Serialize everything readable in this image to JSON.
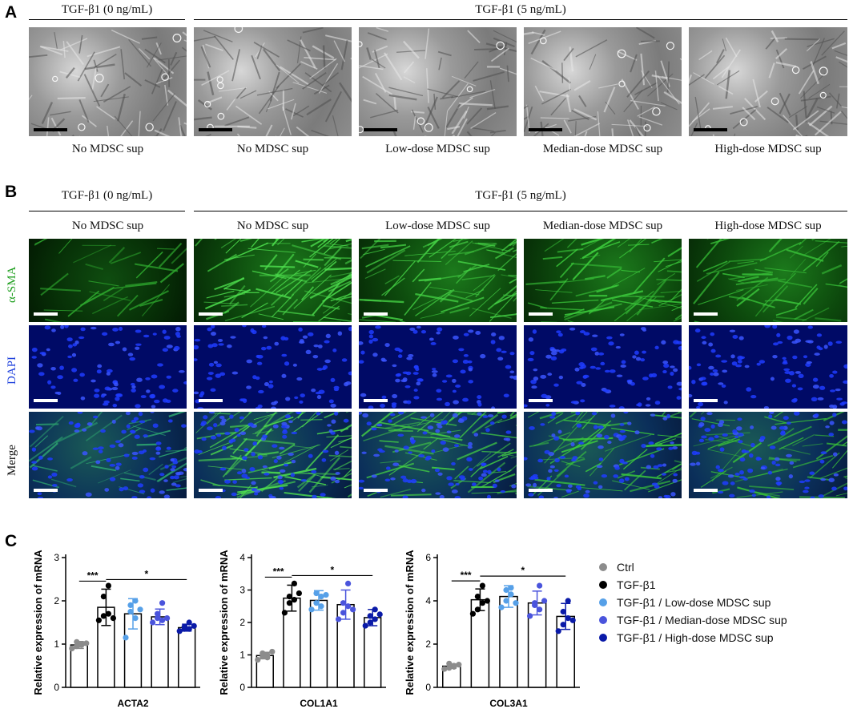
{
  "panels": {
    "A": "A",
    "B": "B",
    "C": "C"
  },
  "headers": {
    "tgf0": "TGF-β1 (0 ng/mL)",
    "tgf5": "TGF-β1 (5 ng/mL)"
  },
  "groups": [
    "No MDSC sup",
    "No MDSC sup",
    "Low-dose MDSC sup",
    "Median-dose MDSC sup",
    "High-dose MDSC sup"
  ],
  "row_labels": {
    "sma": "α-SMA",
    "dapi": "DAPI",
    "merge": "Merge"
  },
  "colors": {
    "ctrl": "#8c8c8c",
    "tgf": "#000000",
    "low": "#56a0e8",
    "median": "#4a54dc",
    "high": "#0a1aa8",
    "sma_text": "#21a021",
    "dapi_text": "#2244dd"
  },
  "legend": [
    "Ctrl",
    "TGF-β1",
    "TGF-β1 / Low-dose MDSC sup",
    "TGF-β1 / Median-dose MDSC sup",
    "TGF-β1 / High-dose MDSC sup"
  ],
  "chart_data": [
    {
      "type": "bar",
      "xlabel": "ACTA2",
      "ylabel": "Relative expression of mRNA",
      "ylim": [
        0,
        3
      ],
      "yticks": [
        0,
        1,
        2,
        3
      ],
      "categories": [
        "Ctrl",
        "TGF-β1",
        "TGF-β1 / Low-dose MDSC sup",
        "TGF-β1 / Median-dose MDSC sup",
        "TGF-β1 / High-dose MDSC sup"
      ],
      "values": [
        0.98,
        1.85,
        1.7,
        1.63,
        1.38
      ],
      "errors": [
        0.08,
        0.42,
        0.35,
        0.18,
        0.08
      ],
      "points": [
        [
          0.9,
          0.95,
          1.0,
          1.05,
          0.98,
          1.02
        ],
        [
          1.55,
          1.65,
          2.35,
          2.1,
          1.7,
          1.6
        ],
        [
          1.15,
          1.9,
          2.0,
          1.75,
          1.6,
          1.8
        ],
        [
          1.5,
          1.6,
          1.95,
          1.7,
          1.55,
          1.6
        ],
        [
          1.3,
          1.35,
          1.5,
          1.4,
          1.35,
          1.42
        ]
      ],
      "significance": [
        {
          "label": "***",
          "from": 0,
          "to": 1
        },
        {
          "label": "*",
          "from": 1,
          "to": 4
        }
      ]
    },
    {
      "type": "bar",
      "xlabel": "COL1A1",
      "ylabel": "Relative expression of mRNA",
      "ylim": [
        0,
        4
      ],
      "yticks": [
        0,
        1,
        2,
        3,
        4
      ],
      "categories": [
        "Ctrl",
        "TGF-β1",
        "TGF-β1 / Low-dose MDSC sup",
        "TGF-β1 / Median-dose MDSC sup",
        "TGF-β1 / High-dose MDSC sup"
      ],
      "values": [
        0.98,
        2.75,
        2.68,
        2.55,
        2.15
      ],
      "errors": [
        0.1,
        0.4,
        0.3,
        0.45,
        0.25
      ],
      "points": [
        [
          0.85,
          0.95,
          1.0,
          1.05,
          0.92,
          1.1
        ],
        [
          2.3,
          2.6,
          3.2,
          2.8,
          2.7,
          2.9
        ],
        [
          2.4,
          2.9,
          2.8,
          2.6,
          2.5,
          2.85
        ],
        [
          2.1,
          2.3,
          3.2,
          2.6,
          2.5,
          2.4
        ],
        [
          1.9,
          2.0,
          2.4,
          2.2,
          2.1,
          2.25
        ]
      ],
      "significance": [
        {
          "label": "***",
          "from": 0,
          "to": 1
        },
        {
          "label": "*",
          "from": 1,
          "to": 4
        }
      ]
    },
    {
      "type": "bar",
      "xlabel": "COL3A1",
      "ylabel": "Relative expression of mRNA",
      "ylim": [
        0,
        6
      ],
      "yticks": [
        0,
        2,
        4,
        6
      ],
      "categories": [
        "Ctrl",
        "TGF-β1",
        "TGF-β1 / Low-dose MDSC sup",
        "TGF-β1 / Median-dose MDSC sup",
        "TGF-β1 / High-dose MDSC sup"
      ],
      "values": [
        0.98,
        4.05,
        4.2,
        3.9,
        3.28
      ],
      "errors": [
        0.1,
        0.5,
        0.5,
        0.55,
        0.6
      ],
      "points": [
        [
          0.85,
          0.9,
          1.0,
          1.1,
          0.95,
          1.05
        ],
        [
          3.4,
          3.6,
          4.7,
          4.2,
          3.9,
          4.0
        ],
        [
          3.7,
          4.5,
          4.6,
          4.0,
          4.3,
          3.9
        ],
        [
          3.3,
          3.8,
          4.7,
          3.9,
          3.6,
          4.0
        ],
        [
          2.6,
          2.9,
          4.0,
          3.5,
          3.2,
          3.1
        ]
      ],
      "significance": [
        {
          "label": "***",
          "from": 0,
          "to": 1
        },
        {
          "label": "*",
          "from": 1,
          "to": 4
        }
      ]
    }
  ]
}
